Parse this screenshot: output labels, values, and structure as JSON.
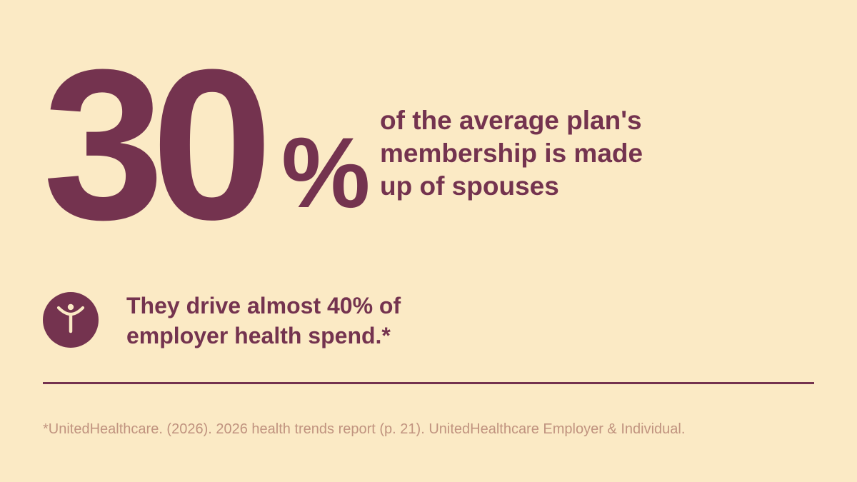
{
  "colors": {
    "background": "#fbeac5",
    "accent": "#74334f",
    "footnote": "#c0937f"
  },
  "stat": {
    "number": "30",
    "percent": "%",
    "description_lines": [
      "of the average plan's",
      "membership is made",
      "up of spouses"
    ]
  },
  "detail": {
    "icon": "person-raised-arms-icon",
    "lines": [
      "They drive almost 40% of",
      "employer health spend.*"
    ]
  },
  "footnote": "*UnitedHealthcare. (2026). 2026 health trends report (p. 21). UnitedHealthcare Employer & Individual."
}
